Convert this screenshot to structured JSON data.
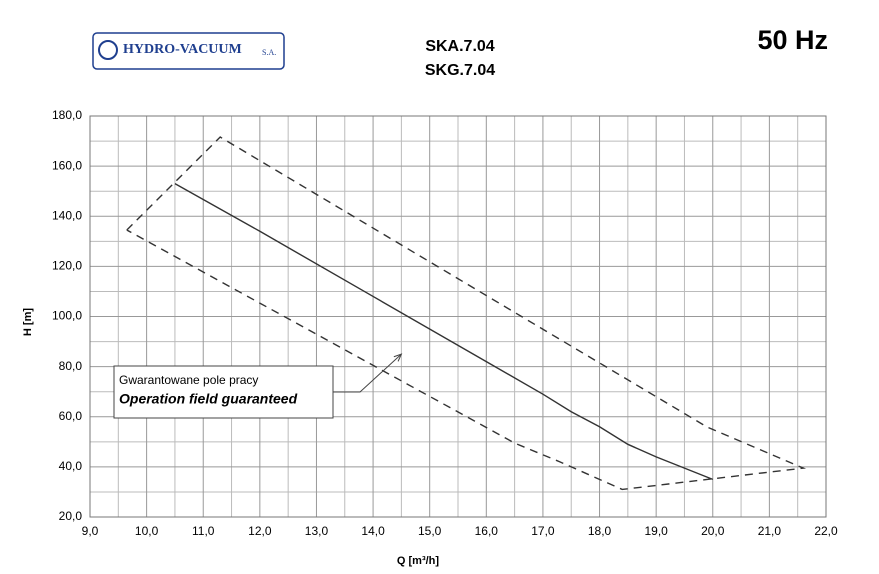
{
  "header": {
    "logo_name": "HYDRO-VACUUM",
    "logo_suffix": "S.A.",
    "models": [
      "SKA.7.04",
      "SKG.7.04"
    ],
    "frequency": "50 Hz"
  },
  "chart_data": {
    "type": "line",
    "xlabel": "Q [m³/h]",
    "ylabel": "H [m]",
    "xlim": [
      9,
      22
    ],
    "ylim": [
      20,
      180
    ],
    "xticks": [
      {
        "value": 9,
        "label": "9,0"
      },
      {
        "value": 10,
        "label": "10,0"
      },
      {
        "value": 11,
        "label": "11,0"
      },
      {
        "value": 12,
        "label": "12,0"
      },
      {
        "value": 13,
        "label": "13,0"
      },
      {
        "value": 14,
        "label": "14,0"
      },
      {
        "value": 15,
        "label": "15,0"
      },
      {
        "value": 16,
        "label": "16,0"
      },
      {
        "value": 17,
        "label": "17,0"
      },
      {
        "value": 18,
        "label": "18,0"
      },
      {
        "value": 19,
        "label": "19,0"
      },
      {
        "value": 20,
        "label": "20,0"
      },
      {
        "value": 21,
        "label": "21,0"
      },
      {
        "value": 22,
        "label": "22,0"
      }
    ],
    "yticks": [
      {
        "value": 20,
        "label": "20,0"
      },
      {
        "value": 40,
        "label": "40,0"
      },
      {
        "value": 60,
        "label": "60,0"
      },
      {
        "value": 80,
        "label": "80,0"
      },
      {
        "value": 100,
        "label": "100,0"
      },
      {
        "value": 120,
        "label": "120,0"
      },
      {
        "value": 140,
        "label": "140,0"
      },
      {
        "value": 160,
        "label": "160,0"
      },
      {
        "value": 180,
        "label": "180,0"
      }
    ],
    "x_minor_ticks": [
      9.5,
      10.5,
      11.5,
      12.5,
      13.5,
      14.5,
      15.5,
      16.5,
      17.5,
      18.5,
      19.5,
      20.5,
      21.5
    ],
    "y_minor_ticks": [
      30,
      50,
      70,
      90,
      110,
      130,
      150,
      170
    ],
    "grid": true,
    "series": [
      {
        "color": "#333333",
        "dashed": false,
        "x": [
          10.5,
          12,
          14,
          16,
          17,
          17.5,
          18,
          18.5,
          19,
          20
        ],
        "values": [
          153,
          134,
          108,
          82,
          69,
          62,
          56,
          49,
          44,
          35
        ]
      },
      {
        "color": "#333333",
        "dashed": true,
        "x": [
          9.65,
          11.3,
          19.9,
          21.6,
          18.4,
          17.3,
          16.5,
          9.65
        ],
        "values": [
          134.5,
          171.6,
          55.9,
          39.5,
          31,
          42,
          49.5,
          134.5
        ]
      }
    ],
    "annotation": {
      "lines": [
        "Gwarantowane pole pracy",
        "Operation field guaranteed"
      ],
      "arrow_to": [
        14.5,
        85
      ]
    }
  }
}
